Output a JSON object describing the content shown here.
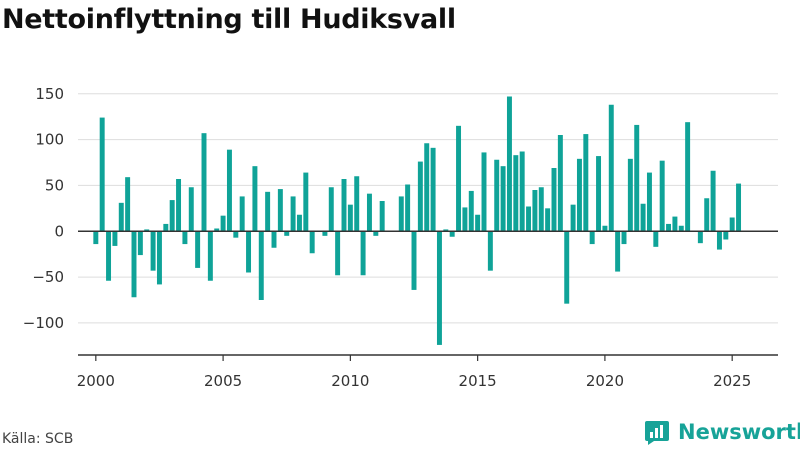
{
  "title": "Nettoinflyttning till Hudiksvall",
  "source": "Källa: SCB",
  "brand": {
    "name": "Newsworthy",
    "icon": "newsworthy-logo-icon"
  },
  "colors": {
    "bar": "#0fa398",
    "grid": "#dddddd",
    "axis": "#333333",
    "brand": "#17a398"
  },
  "chart_data": {
    "type": "bar",
    "title": "Nettoinflyttning till Hudiksvall",
    "xlabel": "",
    "ylabel": "",
    "ylim": [
      -135,
      165
    ],
    "xlim": [
      1999.3,
      2026.8
    ],
    "grid": true,
    "legend": "none",
    "yticks": [
      {
        "value": -100,
        "label": "−100"
      },
      {
        "value": -50,
        "label": "−50"
      },
      {
        "value": 0,
        "label": "0"
      },
      {
        "value": 50,
        "label": "50"
      },
      {
        "value": 100,
        "label": "100"
      },
      {
        "value": 150,
        "label": "150"
      }
    ],
    "xticks": [
      {
        "value": 2000,
        "label": "2000"
      },
      {
        "value": 2005,
        "label": "2005"
      },
      {
        "value": 2010,
        "label": "2010"
      },
      {
        "value": 2015,
        "label": "2015"
      },
      {
        "value": 2020,
        "label": "2020"
      },
      {
        "value": 2025,
        "label": "2025"
      }
    ],
    "series": [
      {
        "start": "2000-Q1",
        "frequency": "quarterly",
        "values": [
          -14,
          124,
          -54,
          -16,
          31,
          59,
          -72,
          -26,
          2,
          -43,
          -58,
          8,
          34,
          57,
          -14,
          48,
          -40,
          107,
          -54,
          3,
          17,
          89,
          -7,
          38,
          -45,
          71,
          -75,
          43,
          -18,
          46,
          -5,
          38,
          18,
          64,
          -24,
          0,
          -5,
          48,
          -48,
          57,
          29,
          60,
          -48,
          41,
          -5,
          33,
          0,
          0,
          38,
          51,
          -64,
          76,
          96,
          91,
          -124,
          2,
          -6,
          115,
          26,
          44,
          18,
          86,
          -43,
          78,
          71,
          147,
          83,
          87,
          27,
          45,
          48,
          25,
          69,
          105,
          -79,
          29,
          79,
          106,
          -14,
          82,
          6,
          138,
          -44,
          -14,
          79,
          116,
          30,
          64,
          -17,
          77,
          8,
          16,
          6,
          119,
          0,
          -13,
          36,
          66,
          -20,
          -9,
          15,
          52
        ]
      }
    ]
  }
}
